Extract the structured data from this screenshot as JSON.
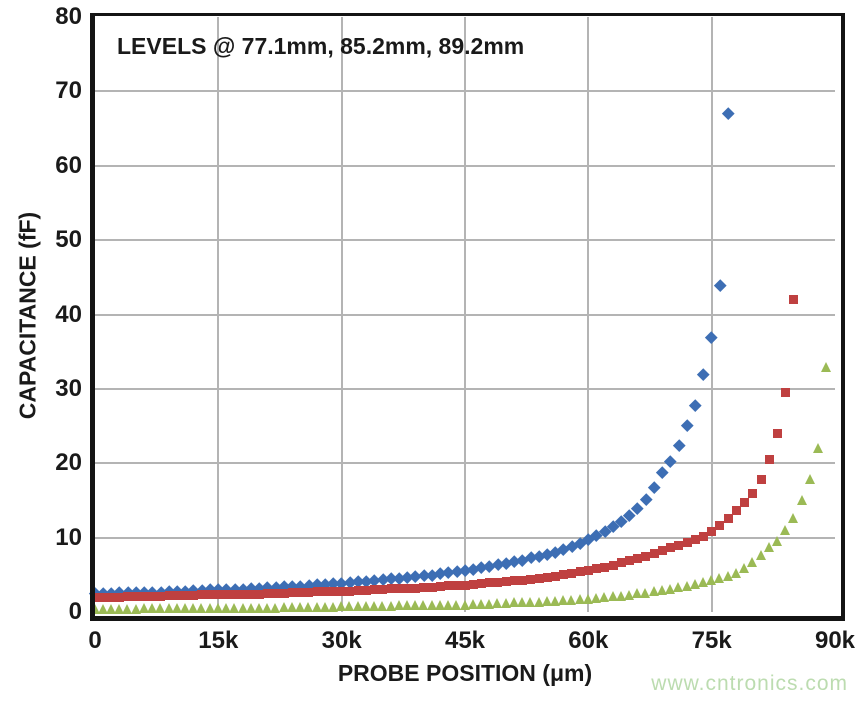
{
  "watermark": "www.cntronics.com",
  "colors": {
    "background": "#ffffff",
    "grid": "#b4b4b4",
    "frame": "#141414",
    "text": "#1a1a1a",
    "watermark": "#bcdcb0"
  },
  "chart_data": {
    "type": "scatter",
    "title_annotation": "LEVELS @ 77.1mm, 85.2mm, 89.2mm",
    "xlabel": "PROBE POSITION (μm)",
    "ylabel": "CAPACITANCE (fF)",
    "xlim": [
      0,
      90000
    ],
    "ylim": [
      0,
      80
    ],
    "grid": true,
    "legend": "none",
    "x_ticks": [
      {
        "value": 0,
        "label": "0"
      },
      {
        "value": 15000,
        "label": "15k"
      },
      {
        "value": 30000,
        "label": "30k"
      },
      {
        "value": 45000,
        "label": "45k"
      },
      {
        "value": 60000,
        "label": "60k"
      },
      {
        "value": 75000,
        "label": "75k"
      },
      {
        "value": 90000,
        "label": "90k"
      }
    ],
    "y_ticks": [
      {
        "value": 0,
        "label": "0"
      },
      {
        "value": 10,
        "label": "10"
      },
      {
        "value": 20,
        "label": "20"
      },
      {
        "value": 30,
        "label": "30"
      },
      {
        "value": 40,
        "label": "40"
      },
      {
        "value": 50,
        "label": "50"
      },
      {
        "value": 60,
        "label": "60"
      },
      {
        "value": 70,
        "label": "70"
      },
      {
        "value": 80,
        "label": "80"
      }
    ],
    "x_step_um": 1000,
    "x_start_um": 0,
    "series": [
      {
        "name": "level_77.1mm",
        "marker": "diamond",
        "color": "#3d6eb4",
        "values": [
          2.5,
          2.5,
          2.5,
          2.6,
          2.6,
          2.6,
          2.7,
          2.7,
          2.7,
          2.8,
          2.8,
          2.8,
          2.9,
          2.9,
          3.0,
          3.0,
          3.0,
          3.1,
          3.1,
          3.2,
          3.2,
          3.3,
          3.3,
          3.4,
          3.5,
          3.5,
          3.6,
          3.7,
          3.7,
          3.8,
          3.9,
          4.0,
          4.1,
          4.2,
          4.3,
          4.4,
          4.5,
          4.6,
          4.7,
          4.8,
          4.9,
          5.0,
          5.2,
          5.3,
          5.5,
          5.6,
          5.8,
          6.0,
          6.2,
          6.4,
          6.6,
          6.8,
          7.0,
          7.3,
          7.5,
          7.8,
          8.1,
          8.5,
          8.9,
          9.3,
          9.8,
          10.3,
          10.9,
          11.5,
          12.2,
          13.0,
          14.0,
          15.2,
          16.8,
          18.8,
          20.3,
          22.4,
          25.1,
          27.8,
          32.0,
          37.0,
          44.0,
          67.0
        ]
      },
      {
        "name": "level_85.2mm",
        "marker": "square",
        "color": "#bf4040",
        "values": [
          2.0,
          2.0,
          2.0,
          2.0,
          2.1,
          2.1,
          2.1,
          2.1,
          2.1,
          2.2,
          2.2,
          2.2,
          2.2,
          2.3,
          2.3,
          2.3,
          2.3,
          2.4,
          2.4,
          2.4,
          2.4,
          2.5,
          2.5,
          2.5,
          2.6,
          2.6,
          2.6,
          2.7,
          2.7,
          2.7,
          2.8,
          2.8,
          2.9,
          2.9,
          3.0,
          3.0,
          3.1,
          3.1,
          3.2,
          3.2,
          3.3,
          3.3,
          3.4,
          3.5,
          3.5,
          3.6,
          3.7,
          3.8,
          3.9,
          4.0,
          4.1,
          4.2,
          4.3,
          4.4,
          4.5,
          4.7,
          4.8,
          5.0,
          5.2,
          5.4,
          5.6,
          5.8,
          6.0,
          6.3,
          6.6,
          6.9,
          7.2,
          7.5,
          7.9,
          8.3,
          8.7,
          9.0,
          9.4,
          9.8,
          10.2,
          10.8,
          11.6,
          12.6,
          13.6,
          14.7,
          16.0,
          17.8,
          20.5,
          24.0,
          29.5,
          42.0
        ]
      },
      {
        "name": "level_89.2mm",
        "marker": "triangle-up",
        "color": "#9bba55",
        "values": [
          0.4,
          0.4,
          0.4,
          0.4,
          0.4,
          0.4,
          0.5,
          0.5,
          0.5,
          0.5,
          0.5,
          0.5,
          0.5,
          0.5,
          0.5,
          0.5,
          0.6,
          0.6,
          0.6,
          0.6,
          0.6,
          0.6,
          0.6,
          0.7,
          0.7,
          0.7,
          0.7,
          0.7,
          0.7,
          0.7,
          0.8,
          0.8,
          0.8,
          0.8,
          0.8,
          0.8,
          0.8,
          0.9,
          0.9,
          0.9,
          0.9,
          0.9,
          1.0,
          1.0,
          1.0,
          1.0,
          1.1,
          1.1,
          1.1,
          1.2,
          1.2,
          1.3,
          1.3,
          1.4,
          1.4,
          1.5,
          1.5,
          1.6,
          1.6,
          1.7,
          1.8,
          1.9,
          2.0,
          2.1,
          2.2,
          2.3,
          2.5,
          2.6,
          2.8,
          2.9,
          3.1,
          3.3,
          3.5,
          3.8,
          4.0,
          4.3,
          4.6,
          4.9,
          5.3,
          5.9,
          6.7,
          7.6,
          8.7,
          9.6,
          11.0,
          12.7,
          15.0,
          17.9,
          22.0,
          33.0
        ]
      }
    ]
  }
}
